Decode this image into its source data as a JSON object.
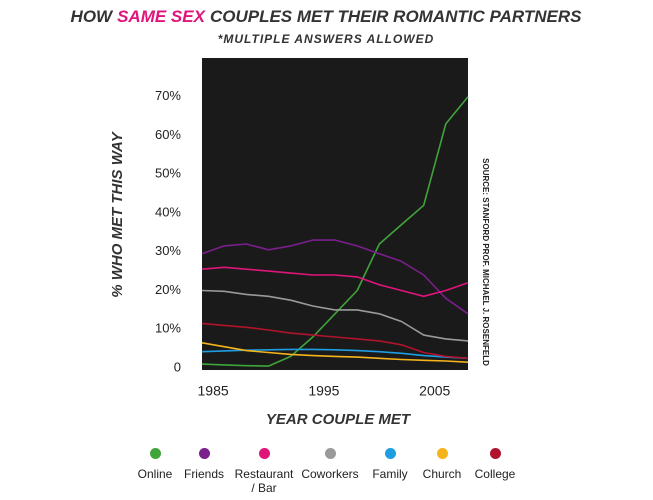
{
  "chart_data": {
    "type": "line",
    "title": [
      "HOW",
      "SAME SEX",
      "COUPLES MET THEIR ROMANTIC PARTNERS"
    ],
    "title_highlight_color": "#e0147a",
    "subtitle": "*MULTIPLE ANSWERS ALLOWED",
    "y_label": "% WHO MET THIS WAY",
    "x_label": "YEAR COUPLE MET",
    "source": "SOURCE: STANFORD PROF. MICHAEL J. ROSENFELD",
    "background": "#1a1a1a",
    "grid": false,
    "xlim": [
      1984,
      2008
    ],
    "xticks": [
      1985,
      1995,
      2005
    ],
    "ylim": [
      0,
      80
    ],
    "yticks": [
      0,
      {
        "value": 10,
        "label": "10%"
      },
      {
        "value": 20,
        "label": "20%"
      },
      {
        "value": 30,
        "label": "30%"
      },
      {
        "value": 40,
        "label": "40%"
      },
      {
        "value": 50,
        "label": "50%"
      },
      {
        "value": 60,
        "label": "60%"
      },
      {
        "value": 70,
        "label": "70%"
      }
    ],
    "x": [
      1984,
      1986,
      1988,
      1990,
      1992,
      1994,
      1996,
      1998,
      2000,
      2002,
      2004,
      2006,
      2008
    ],
    "series": [
      {
        "name": "Online",
        "color": "#3fa53a",
        "values": [
          1,
          0.8,
          0.6,
          0.5,
          3,
          8,
          14,
          20,
          32,
          37,
          42,
          63,
          70
        ]
      },
      {
        "name": "Friends",
        "color": "#7a1f8c",
        "values": [
          29.5,
          31.5,
          32,
          30.5,
          31.5,
          33,
          33,
          31.5,
          29.5,
          27.5,
          24,
          18,
          14
        ]
      },
      {
        "name": "Restaurant / Bar",
        "color": "#e0147a",
        "values": [
          25.5,
          26,
          25.5,
          25,
          24.5,
          24,
          24,
          23.5,
          21.5,
          20,
          18.5,
          20,
          22
        ]
      },
      {
        "name": "Coworkers",
        "color": "#9a9a9a",
        "values": [
          20,
          19.8,
          19,
          18.5,
          17.5,
          16,
          15,
          15,
          14,
          12,
          8.5,
          7.5,
          7
        ]
      },
      {
        "name": "Family",
        "color": "#1e9ee0",
        "values": [
          4.2,
          4.4,
          4.6,
          4.7,
          4.8,
          4.8,
          4.7,
          4.5,
          4.2,
          3.8,
          3.2,
          2.8,
          2.5
        ]
      },
      {
        "name": "Church",
        "color": "#f5b31c",
        "values": [
          6.5,
          5.5,
          4.5,
          4,
          3.5,
          3.2,
          3,
          2.8,
          2.5,
          2.2,
          2,
          1.8,
          1.5
        ]
      },
      {
        "name": "College",
        "color": "#b0142c",
        "values": [
          11.5,
          11,
          10.5,
          9.8,
          9,
          8.5,
          8,
          7.5,
          7,
          6,
          4,
          3,
          2.5
        ]
      }
    ]
  }
}
